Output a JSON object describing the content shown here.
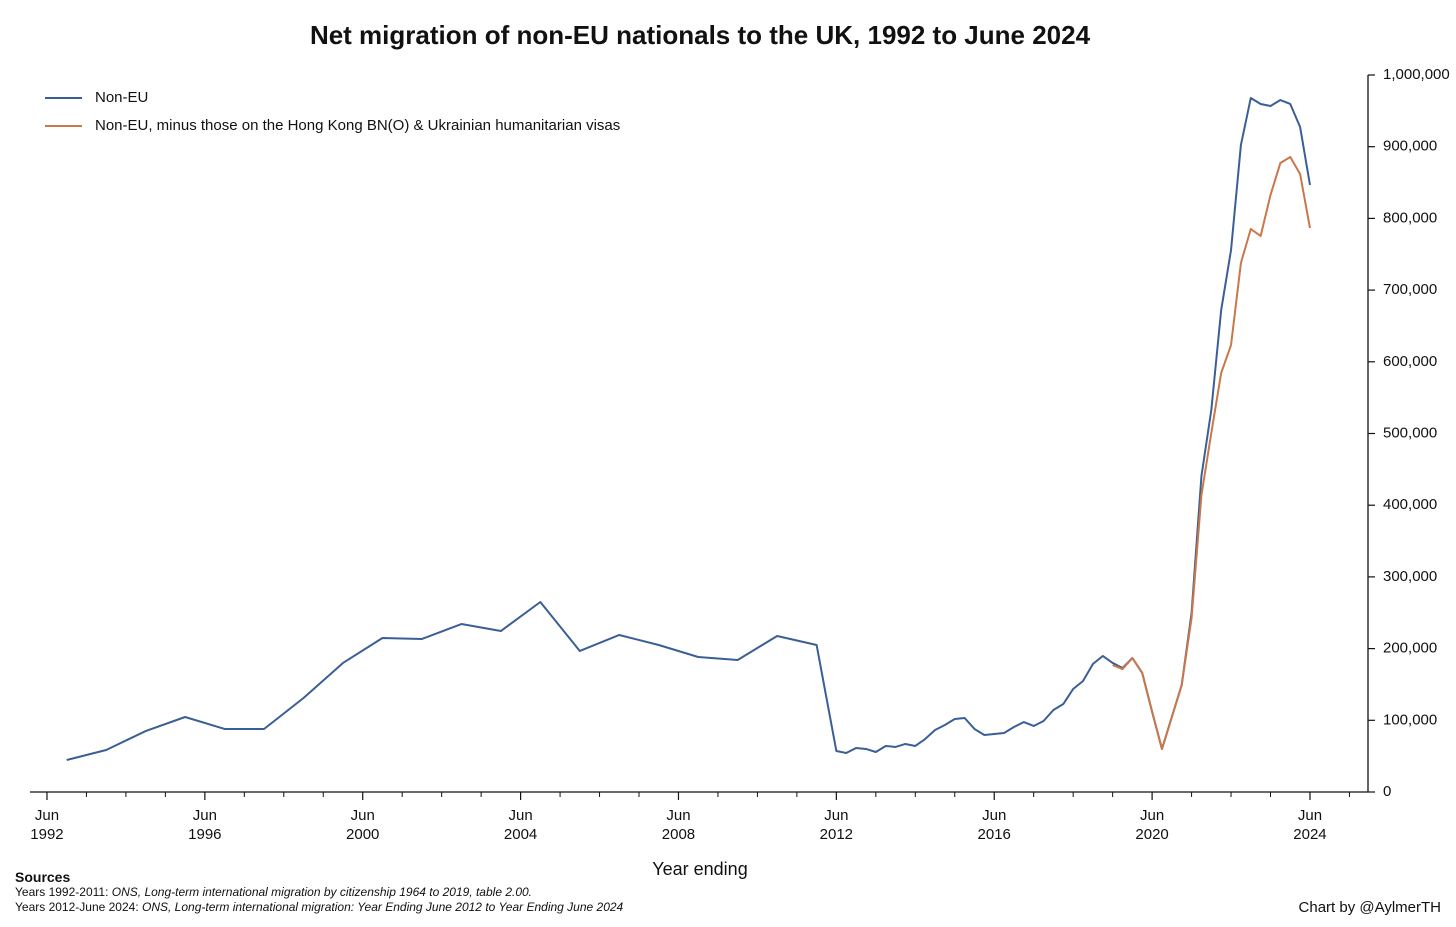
{
  "chart_data": {
    "type": "line",
    "title": "Net migration of non-EU nationals to the UK, 1992 to June 2024",
    "x_label": "Year ending",
    "x": [
      1993,
      1994,
      1995,
      1996,
      1997,
      1998,
      1999,
      2000,
      2001,
      2002,
      2003,
      2004,
      2005,
      2006,
      2007,
      2008,
      2009,
      2010,
      2011,
      2012,
      2012.5,
      2012.75,
      2013,
      2013.25,
      2013.5,
      2013.75,
      2014,
      2014.25,
      2014.5,
      2014.75,
      2015,
      2015.25,
      2015.5,
      2015.75,
      2016,
      2016.25,
      2016.5,
      2016.75,
      2017,
      2017.25,
      2017.5,
      2017.75,
      2018,
      2018.25,
      2018.5,
      2018.75,
      2019,
      2019.25,
      2019.5,
      2019.75,
      2020,
      2020.25,
      2020.5,
      2020.75,
      2021,
      2021.25,
      2021.5,
      2021.75,
      2022,
      2022.25,
      2022.5,
      2022.75,
      2023,
      2023.25,
      2023.5,
      2023.75,
      2024,
      2024.25,
      2024.5
    ],
    "series": [
      {
        "name": "Non-EU",
        "color": "#3a5f96",
        "values": [
          44600,
          58600,
          85000,
          104600,
          87900,
          87900,
          131100,
          180000,
          214800,
          213400,
          234300,
          224500,
          265000,
          196700,
          219000,
          205000,
          188300,
          184100,
          217600,
          205000,
          57200,
          54400,
          61400,
          60000,
          55800,
          64200,
          62800,
          67000,
          64200,
          73900,
          86500,
          93400,
          101800,
          103200,
          87900,
          79500,
          80900,
          82300,
          90700,
          97600,
          92100,
          99000,
          114400,
          122700,
          143700,
          154800,
          178500,
          189700,
          180000,
          172900,
          186900,
          166000,
          112000,
          60000,
          104600,
          149200,
          249700,
          440700,
          532800,
          672200,
          755900,
          902400,
          967900,
          959600,
          956800,
          965100,
          959600,
          927500,
          846600
        ]
      },
      {
        "name": "Non-EU, minus those on the Hong Kong BN(O) & Ukrainian humanitarian visas",
        "color": "#c8784a",
        "values": [
          null,
          null,
          null,
          null,
          null,
          null,
          null,
          null,
          null,
          null,
          null,
          null,
          null,
          null,
          null,
          null,
          null,
          null,
          null,
          null,
          null,
          null,
          null,
          null,
          null,
          null,
          null,
          null,
          null,
          null,
          null,
          null,
          null,
          null,
          null,
          null,
          null,
          null,
          null,
          null,
          null,
          null,
          null,
          null,
          null,
          null,
          null,
          null,
          177100,
          171500,
          186900,
          166000,
          112000,
          60000,
          104600,
          149200,
          242700,
          414200,
          500700,
          584400,
          623400,
          737800,
          785200,
          775500,
          832600,
          877300,
          885600,
          862000,
          786600
        ]
      }
    ],
    "xlim": [
      1992.07,
      2025.97
    ],
    "xticks": [
      {
        "value": 1992.5,
        "label": "Jun\n1992"
      },
      {
        "value": 1996.5,
        "label": "Jun\n1996"
      },
      {
        "value": 2000.5,
        "label": "Jun\n2000"
      },
      {
        "value": 2004.5,
        "label": "Jun\n2004"
      },
      {
        "value": 2008.5,
        "label": "Jun\n2008"
      },
      {
        "value": 2012.5,
        "label": "Jun\n2012"
      },
      {
        "value": 2016.5,
        "label": "Jun\n2016"
      },
      {
        "value": 2020.5,
        "label": "Jun\n2020"
      },
      {
        "value": 2024.5,
        "label": "Jun\n2024"
      }
    ],
    "xminorticks": [
      1993.5,
      1994.5,
      1995.5,
      1997.5,
      1998.5,
      1999.5,
      2001.5,
      2002.5,
      2003.5,
      2005.5,
      2006.5,
      2007.5,
      2009.5,
      2010.5,
      2011.5,
      2013.5,
      2014.5,
      2015.5,
      2017.5,
      2018.5,
      2019.5,
      2021.5,
      2022.5,
      2023.5,
      2025.5
    ],
    "ylim": [
      0,
      1000000
    ],
    "yticks": [
      0,
      {
        "value": 100000,
        "label": "100,000"
      },
      {
        "value": 200000,
        "label": "200,000"
      },
      {
        "value": 300000,
        "label": "300,000"
      },
      {
        "value": 400000,
        "label": "400,000"
      },
      {
        "value": 500000,
        "label": "500,000"
      },
      {
        "value": 600000,
        "label": "600,000"
      },
      {
        "value": 700000,
        "label": "700,000"
      },
      {
        "value": 800000,
        "label": "800,000"
      },
      {
        "value": 900000,
        "label": "900,000"
      },
      {
        "value": 1000000,
        "label": "1,000,000"
      }
    ],
    "y_axis_side": "right",
    "legend": "upper left",
    "sources_heading": "Sources",
    "sources": [
      {
        "label": "Years 1992-2011:",
        "title": "ONS, Long-term international migration by citizenship 1964 to 2019, table 2.00."
      },
      {
        "label": "Years 2012-June 2024:",
        "title": "ONS, Long-term international migration: Year Ending June 2012 to Year Ending June 2024"
      }
    ],
    "credit": "Chart by @AylmerTH"
  }
}
